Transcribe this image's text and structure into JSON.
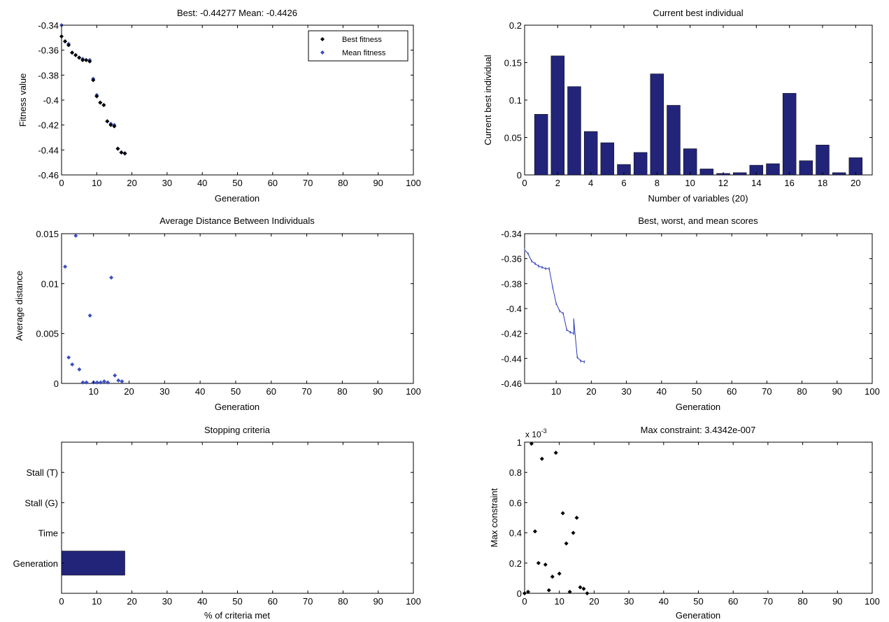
{
  "colors": {
    "bar": "#22247a",
    "mean_marker": "#3d4fbf",
    "best_marker": "#000000",
    "line": "#2a3bb8",
    "background": "#ffffff"
  },
  "chart_data": [
    {
      "id": "fitness",
      "type": "scatter",
      "title": "Best: -0.44277 Mean: -0.4426",
      "xlabel": "Generation",
      "ylabel": "Fitness value",
      "xlim": [
        0,
        100
      ],
      "ylim": [
        -0.46,
        -0.34
      ],
      "xticks": [
        0,
        10,
        20,
        30,
        40,
        50,
        60,
        70,
        80,
        90,
        100
      ],
      "yticks": [
        -0.46,
        -0.44,
        -0.42,
        -0.4,
        -0.38,
        -0.36,
        -0.34
      ],
      "xtick_labels": [
        "0",
        "10",
        "20",
        "30",
        "40",
        "50",
        "60",
        "70",
        "80",
        "90",
        "100"
      ],
      "ytick_labels": [
        "-0.46",
        "-0.44",
        "-0.42",
        "-0.4",
        "-0.38",
        "-0.36",
        "-0.34"
      ],
      "legend": {
        "placement": "top-right",
        "entries": [
          "Best fitness",
          "Mean fitness"
        ]
      },
      "series": [
        {
          "name": "Best fitness",
          "color": "#000000",
          "x": [
            0,
            1,
            2,
            3,
            4,
            5,
            6,
            7,
            8,
            9,
            10,
            11,
            12,
            13,
            14,
            15,
            16,
            17,
            18
          ],
          "y": [
            -0.349,
            -0.353,
            -0.356,
            -0.362,
            -0.364,
            -0.366,
            -0.368,
            -0.368,
            -0.369,
            -0.384,
            -0.397,
            -0.402,
            -0.404,
            -0.417,
            -0.42,
            -0.421,
            -0.439,
            -0.442,
            -0.4428
          ]
        },
        {
          "name": "Mean fitness",
          "color": "#3d4fbf",
          "x": [
            0,
            1,
            2,
            3,
            4,
            5,
            6,
            7,
            8,
            9,
            10,
            11,
            12,
            13,
            14,
            15,
            16,
            17,
            18
          ],
          "y": [
            -0.34,
            -0.353,
            -0.355,
            -0.362,
            -0.364,
            -0.366,
            -0.367,
            -0.368,
            -0.368,
            -0.383,
            -0.396,
            -0.402,
            -0.404,
            -0.417,
            -0.419,
            -0.42,
            -0.439,
            -0.442,
            -0.4426
          ]
        }
      ]
    },
    {
      "id": "best-individual",
      "type": "bar",
      "title": "Current best individual",
      "xlabel": "Number of variables (20)",
      "ylabel": "Current best individual",
      "xlim": [
        0,
        21
      ],
      "ylim": [
        0,
        0.2
      ],
      "xticks": [
        0,
        2,
        4,
        6,
        8,
        10,
        12,
        14,
        16,
        18,
        20
      ],
      "yticks": [
        0,
        0.05,
        0.1,
        0.15,
        0.2
      ],
      "xtick_labels": [
        "0",
        "2",
        "4",
        "6",
        "8",
        "10",
        "12",
        "14",
        "16",
        "18",
        "20"
      ],
      "ytick_labels": [
        "0",
        "0.05",
        "0.1",
        "0.15",
        "0.2"
      ],
      "categories": [
        1,
        2,
        3,
        4,
        5,
        6,
        7,
        8,
        9,
        10,
        11,
        12,
        13,
        14,
        15,
        16,
        17,
        18,
        19,
        20
      ],
      "values": [
        0.081,
        0.159,
        0.118,
        0.058,
        0.043,
        0.014,
        0.03,
        0.135,
        0.093,
        0.035,
        0.008,
        0.002,
        0.003,
        0.013,
        0.015,
        0.109,
        0.019,
        0.04,
        0.003,
        0.023
      ]
    },
    {
      "id": "avg-distance",
      "type": "scatter",
      "title": "Average Distance Between Individuals",
      "xlabel": "Generation",
      "ylabel": "Average distance",
      "xlim": [
        1,
        100
      ],
      "ylim": [
        0,
        0.015
      ],
      "xticks": [
        10,
        20,
        30,
        40,
        50,
        60,
        70,
        80,
        90,
        100
      ],
      "yticks": [
        0,
        0.005,
        0.01,
        0.015
      ],
      "xtick_labels": [
        "10",
        "20",
        "30",
        "40",
        "50",
        "60",
        "70",
        "80",
        "90",
        "100"
      ],
      "ytick_labels": [
        "0",
        "0.005",
        "0.01",
        "0.015"
      ],
      "series": [
        {
          "color": "#3d4fbf",
          "x": [
            2,
            3,
            4,
            5,
            6,
            7,
            8,
            9,
            10,
            11,
            12,
            13,
            14,
            15,
            16,
            17,
            18
          ],
          "y": [
            0.0117,
            0.0026,
            0.0019,
            0.0148,
            0.0014,
            0.0001,
            0.0001,
            0.0068,
            0.0001,
            0.0001,
            0.0001,
            0.0002,
            0.0001,
            0.0106,
            0.0008,
            0.0003,
            0.0002
          ]
        }
      ]
    },
    {
      "id": "scores",
      "type": "line",
      "title": "Best, worst, and mean scores",
      "xlabel": "Generation",
      "ylabel": "",
      "xlim": [
        1,
        100
      ],
      "ylim": [
        -0.46,
        -0.34
      ],
      "xticks": [
        10,
        20,
        30,
        40,
        50,
        60,
        70,
        80,
        90,
        100
      ],
      "yticks": [
        -0.46,
        -0.44,
        -0.42,
        -0.4,
        -0.38,
        -0.36,
        -0.34
      ],
      "xtick_labels": [
        "10",
        "20",
        "30",
        "40",
        "50",
        "60",
        "70",
        "80",
        "90",
        "100"
      ],
      "ytick_labels": [
        "-0.46",
        "-0.44",
        "-0.42",
        "-0.4",
        "-0.38",
        "-0.36",
        "-0.34"
      ],
      "series": [
        {
          "color": "#2a3bb8",
          "x": [
            1,
            2,
            3,
            4,
            5,
            6,
            7,
            8,
            9,
            10,
            11,
            12,
            13,
            14,
            15,
            15,
            16,
            17,
            18
          ],
          "y": [
            -0.353,
            -0.356,
            -0.362,
            -0.364,
            -0.366,
            -0.367,
            -0.368,
            -0.368,
            -0.383,
            -0.396,
            -0.402,
            -0.404,
            -0.417,
            -0.419,
            -0.42,
            -0.409,
            -0.439,
            -0.442,
            -0.4427
          ]
        }
      ]
    },
    {
      "id": "stopping",
      "type": "bar",
      "orientation": "horizontal",
      "title": "Stopping criteria",
      "xlabel": "% of criteria met",
      "ylabel": "",
      "xlim": [
        0,
        100
      ],
      "xticks": [
        0,
        10,
        20,
        30,
        40,
        50,
        60,
        70,
        80,
        90,
        100
      ],
      "xtick_labels": [
        "0",
        "10",
        "20",
        "30",
        "40",
        "50",
        "60",
        "70",
        "80",
        "90",
        "100"
      ],
      "categories": [
        "Stall (T)",
        "Stall (G)",
        "Time",
        "Generation"
      ],
      "values": [
        0,
        0,
        0,
        18
      ]
    },
    {
      "id": "max-constraint",
      "type": "scatter",
      "title": "Max constraint: 3.4342e-007",
      "xlabel": "Generation",
      "ylabel": "Max constraint",
      "exponent_label": "x 10",
      "exponent_power": "-3",
      "xlim": [
        0,
        100
      ],
      "ylim": [
        0,
        1
      ],
      "xticks": [
        0,
        10,
        20,
        30,
        40,
        50,
        60,
        70,
        80,
        90,
        100
      ],
      "yticks": [
        0,
        0.2,
        0.4,
        0.6,
        0.8,
        1
      ],
      "xtick_labels": [
        "0",
        "10",
        "20",
        "30",
        "40",
        "50",
        "60",
        "70",
        "80",
        "90",
        "100"
      ],
      "ytick_labels": [
        "0",
        "0.2",
        "0.4",
        "0.6",
        "0.8",
        "1"
      ],
      "series": [
        {
          "color": "#000000",
          "x": [
            0,
            1,
            2,
            3,
            4,
            5,
            6,
            7,
            8,
            9,
            10,
            11,
            12,
            13,
            14,
            15,
            16,
            17,
            18
          ],
          "y": [
            0.0,
            0.01,
            0.99,
            0.41,
            0.2,
            0.89,
            0.19,
            0.02,
            0.11,
            0.93,
            0.13,
            0.53,
            0.33,
            0.01,
            0.4,
            0.5,
            0.04,
            0.03,
            0.0
          ]
        }
      ]
    }
  ]
}
